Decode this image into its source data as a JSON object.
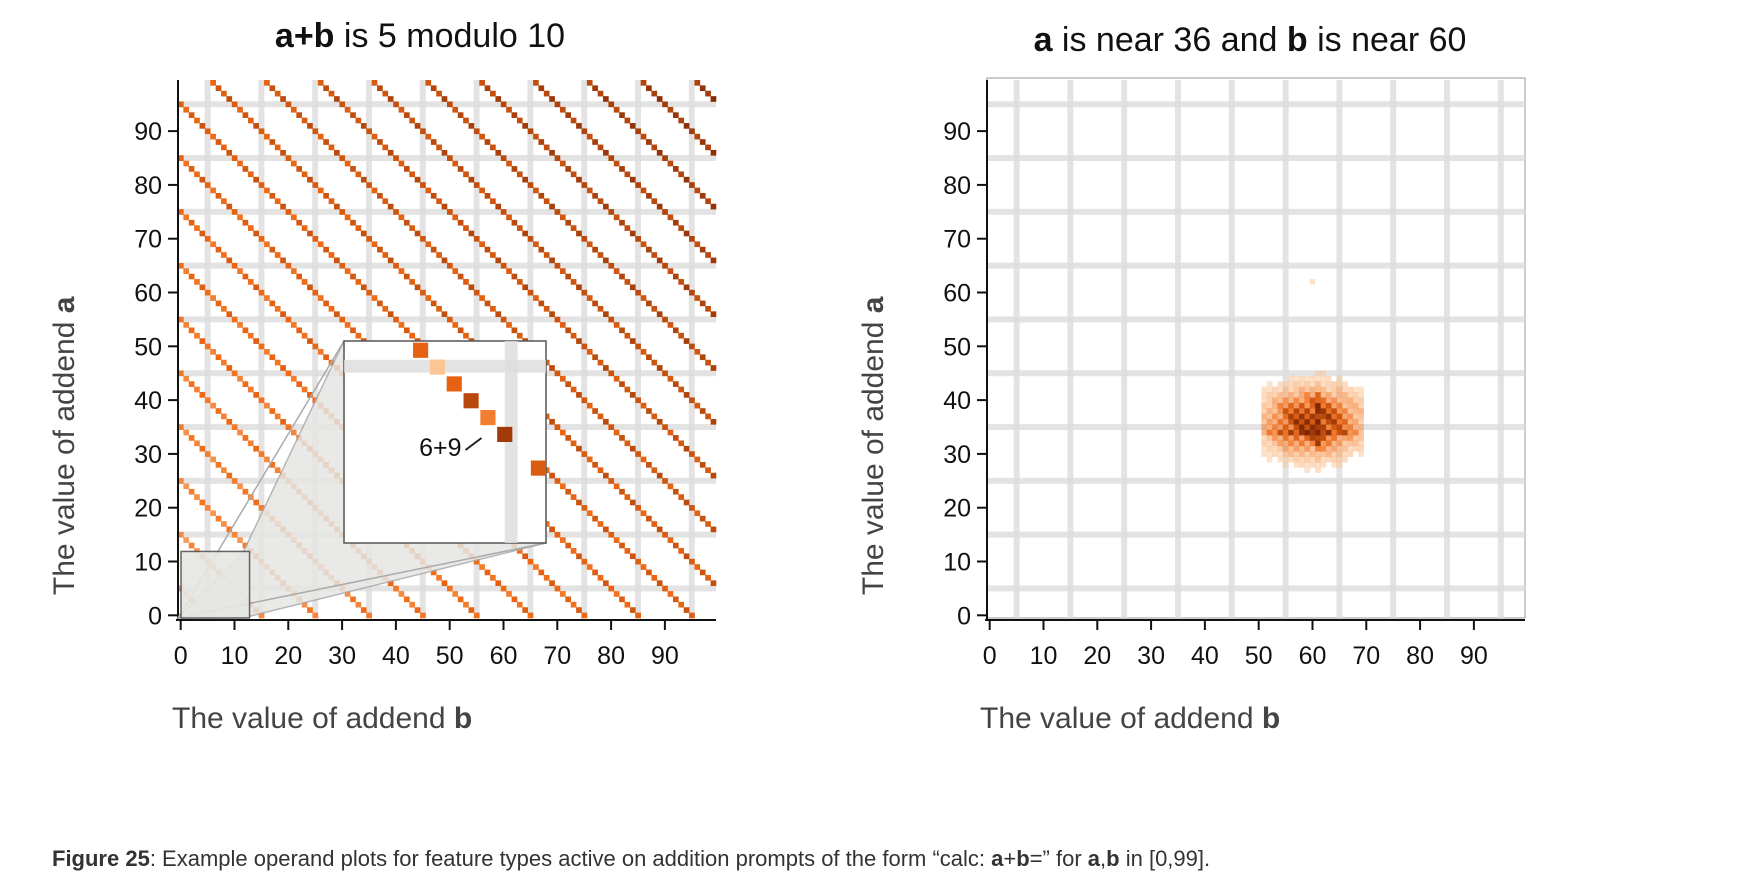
{
  "caption": {
    "label": "Figure 25",
    "text_1": ": Example operand plots for feature types active on addition prompts of the form “calc: ",
    "bold_1": "a",
    "text_2": "+",
    "bold_2": "b",
    "text_3": "=” for ",
    "bold_3": "a",
    "text_4": ",",
    "bold_4": "b",
    "text_5": " in [0,99]."
  },
  "colors": {
    "low": "#fdd0a2",
    "mid": "#f16913",
    "high": "#7f2704",
    "grid": "#dcdcdc",
    "axis": "#111111",
    "inset_fill": "#e6e6e3",
    "inset_border": "#555555"
  },
  "chart_data": [
    {
      "type": "heatmap",
      "title_parts": [
        {
          "text": "a+b",
          "bold": true
        },
        {
          "text": " is 5 modulo 10",
          "bold": false
        }
      ],
      "xlabel_parts": [
        {
          "text": "The value of addend ",
          "bold": false
        },
        {
          "text": "b",
          "bold": true
        }
      ],
      "ylabel_parts": [
        {
          "text": "The value of addend ",
          "bold": false
        },
        {
          "text": "a",
          "bold": true
        }
      ],
      "xlim": [
        0,
        99
      ],
      "ylim": [
        0,
        99
      ],
      "xticks": [
        0,
        10,
        20,
        30,
        40,
        50,
        60,
        70,
        80,
        90
      ],
      "yticks": [
        0,
        10,
        20,
        30,
        40,
        50,
        60,
        70,
        80,
        90
      ],
      "grid_every": 10,
      "pattern": "active where (a+b) mod 10 = 5; intensity varies, stronger for larger a+b",
      "modulus": 10,
      "residue": 5,
      "inset": {
        "region_b": [
          0,
          11
        ],
        "region_a": [
          0,
          11
        ],
        "annotation": "6+9",
        "cells": [
          {
            "b": 4,
            "a": 11,
            "v": 0.55
          },
          {
            "b": 5,
            "a": 10,
            "v": 0.05
          },
          {
            "b": 6,
            "a": 9,
            "v": 0.55
          },
          {
            "b": 7,
            "a": 8,
            "v": 0.75
          },
          {
            "b": 8,
            "a": 7,
            "v": 0.4
          },
          {
            "b": 9,
            "a": 6,
            "v": 0.85
          },
          {
            "b": 11,
            "a": 4,
            "v": 0.6
          }
        ]
      }
    },
    {
      "type": "heatmap",
      "title_parts": [
        {
          "text": "a",
          "bold": true
        },
        {
          "text": " is near 36 and ",
          "bold": false
        },
        {
          "text": "b",
          "bold": true
        },
        {
          "text": " is near 60",
          "bold": false
        }
      ],
      "xlabel_parts": [
        {
          "text": "The value of addend ",
          "bold": false
        },
        {
          "text": "b",
          "bold": true
        }
      ],
      "ylabel_parts": [
        {
          "text": "The value of addend ",
          "bold": false
        },
        {
          "text": "a",
          "bold": true
        }
      ],
      "xlim": [
        0,
        99
      ],
      "ylim": [
        0,
        99
      ],
      "xticks": [
        0,
        10,
        20,
        30,
        40,
        50,
        60,
        70,
        80,
        90
      ],
      "yticks": [
        0,
        10,
        20,
        30,
        40,
        50,
        60,
        70,
        80,
        90
      ],
      "grid_every": 10,
      "pattern": "localized cluster centered near a=36, b=60",
      "center_a": 36,
      "center_b": 60,
      "spread_a": 4,
      "spread_b": 6
    }
  ]
}
